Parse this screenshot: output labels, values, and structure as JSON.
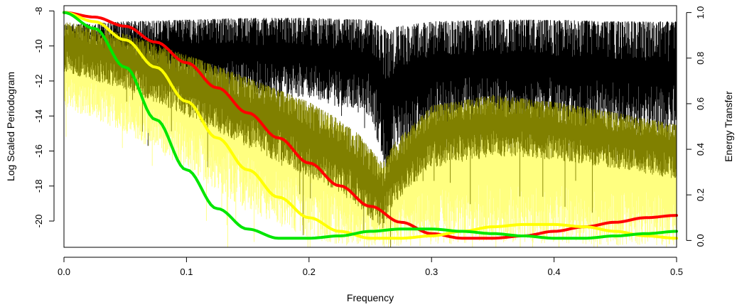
{
  "chart_data": {
    "type": "line",
    "title": "",
    "xlabel": "Frequency",
    "ylabel": "Log Scaled Periodogram",
    "ylabel_right": "Energy Transfer",
    "xlim": [
      0.0,
      0.5
    ],
    "ylim": [
      -21.5,
      -7.7
    ],
    "ylim_right": [
      -0.03,
      1.03
    ],
    "x_ticks": [
      0.0,
      0.1,
      0.2,
      0.3,
      0.4,
      0.5
    ],
    "x_tick_labels": [
      "0.0",
      "0.1",
      "0.2",
      "0.3",
      "0.4",
      "0.5"
    ],
    "y_ticks": [
      -8,
      -10,
      -12,
      -14,
      -16,
      -18,
      -20
    ],
    "y_tick_labels": [
      "-8",
      "-10",
      "-12",
      "-14",
      "-16",
      "-18",
      "-20"
    ],
    "y_right_ticks": [
      0.0,
      0.2,
      0.4,
      0.6,
      0.8,
      1.0
    ],
    "y_right_tick_labels": [
      "0.0",
      "0.2",
      "0.4",
      "0.6",
      "0.8",
      "1.0"
    ],
    "grid": false,
    "legend": "none",
    "series": [
      {
        "kind": "periodogram",
        "color": "#000000",
        "envelope": {
          "x": [
            0.0,
            0.05,
            0.1,
            0.15,
            0.2,
            0.25,
            0.26,
            0.265,
            0.27,
            0.3,
            0.35,
            0.4,
            0.45,
            0.5
          ],
          "top": [
            -8.8,
            -8.6,
            -8.5,
            -8.4,
            -8.4,
            -8.5,
            -8.9,
            -9.3,
            -8.9,
            -8.6,
            -8.5,
            -8.5,
            -8.6,
            -8.6
          ],
          "base": [
            -11.5,
            -12.2,
            -12.6,
            -12.8,
            -13.0,
            -14.0,
            -16.5,
            -18.8,
            -16.0,
            -14.5,
            -14.2,
            -14.4,
            -14.8,
            -15.2
          ]
        }
      },
      {
        "kind": "periodogram",
        "color": "#FFFF80",
        "envelope": {
          "x": [
            0.0,
            0.05,
            0.1,
            0.15,
            0.2,
            0.22,
            0.24,
            0.26,
            0.27,
            0.3,
            0.35,
            0.4,
            0.45,
            0.5
          ],
          "top": [
            -9.0,
            -9.8,
            -11.0,
            -12.2,
            -13.4,
            -14.2,
            -15.3,
            -17.0,
            -15.8,
            -13.8,
            -13.2,
            -13.6,
            -14.2,
            -14.8
          ],
          "base": [
            -13.5,
            -15.0,
            -17.0,
            -19.5,
            -21.0,
            -21.3,
            -21.5,
            -21.5,
            -21.5,
            -21.4,
            -21.2,
            -21.3,
            -21.4,
            -21.4
          ]
        }
      },
      {
        "kind": "periodogram",
        "color": "#808000",
        "envelope": {
          "x": [
            0.0,
            0.05,
            0.1,
            0.15,
            0.2,
            0.22,
            0.24,
            0.26,
            0.27,
            0.3,
            0.35,
            0.4,
            0.45,
            0.5
          ],
          "top": [
            -8.6,
            -9.3,
            -10.5,
            -11.8,
            -13.2,
            -14.0,
            -15.0,
            -16.7,
            -15.5,
            -13.4,
            -12.8,
            -13.2,
            -13.8,
            -14.5
          ],
          "base": [
            -11.5,
            -12.5,
            -14.0,
            -15.8,
            -17.5,
            -18.2,
            -19.2,
            -20.5,
            -19.0,
            -17.0,
            -16.3,
            -16.5,
            -17.0,
            -17.6
          ]
        }
      },
      {
        "kind": "energy_transfer",
        "axis": "right",
        "color": "#FF0000",
        "x": [
          0.0,
          0.025,
          0.05,
          0.075,
          0.1,
          0.125,
          0.15,
          0.175,
          0.2,
          0.225,
          0.25,
          0.275,
          0.3,
          0.325,
          0.35,
          0.375,
          0.4,
          0.425,
          0.45,
          0.475,
          0.5
        ],
        "y": [
          1.0,
          0.98,
          0.94,
          0.87,
          0.78,
          0.67,
          0.56,
          0.45,
          0.34,
          0.24,
          0.15,
          0.08,
          0.03,
          0.01,
          0.01,
          0.02,
          0.04,
          0.06,
          0.08,
          0.1,
          0.11
        ]
      },
      {
        "kind": "energy_transfer",
        "axis": "right",
        "color": "#FFFF00",
        "x": [
          0.0,
          0.025,
          0.05,
          0.075,
          0.1,
          0.125,
          0.15,
          0.175,
          0.2,
          0.225,
          0.25,
          0.275,
          0.3,
          0.325,
          0.35,
          0.375,
          0.4,
          0.425,
          0.45,
          0.475,
          0.5
        ],
        "y": [
          1.0,
          0.96,
          0.88,
          0.76,
          0.61,
          0.45,
          0.31,
          0.19,
          0.1,
          0.04,
          0.01,
          0.01,
          0.02,
          0.04,
          0.06,
          0.07,
          0.07,
          0.06,
          0.04,
          0.02,
          0.01
        ]
      },
      {
        "kind": "energy_transfer",
        "axis": "right",
        "color": "#00E600",
        "x": [
          0.0,
          0.025,
          0.05,
          0.075,
          0.1,
          0.125,
          0.15,
          0.175,
          0.2,
          0.225,
          0.25,
          0.275,
          0.3,
          0.325,
          0.35,
          0.375,
          0.4,
          0.425,
          0.45,
          0.475,
          0.5
        ],
        "y": [
          1.0,
          0.93,
          0.76,
          0.53,
          0.31,
          0.14,
          0.05,
          0.01,
          0.01,
          0.02,
          0.04,
          0.05,
          0.05,
          0.04,
          0.03,
          0.02,
          0.01,
          0.01,
          0.02,
          0.03,
          0.04
        ]
      }
    ]
  }
}
